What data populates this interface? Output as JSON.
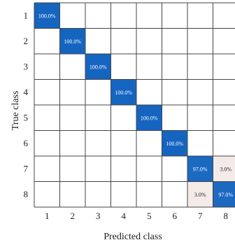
{
  "chart_data": {
    "type": "heatmap",
    "xlabel": "Predicted class",
    "ylabel": "True class",
    "x_categories": [
      "1",
      "2",
      "3",
      "4",
      "5",
      "6",
      "7",
      "8"
    ],
    "y_categories": [
      "1",
      "2",
      "3",
      "4",
      "5",
      "6",
      "7",
      "8"
    ],
    "unit": "%",
    "cells": [
      {
        "true": "1",
        "predicted": "1",
        "value": 100.0,
        "label": "100.0%"
      },
      {
        "true": "2",
        "predicted": "2",
        "value": 100.0,
        "label": "100.0%"
      },
      {
        "true": "3",
        "predicted": "3",
        "value": 100.0,
        "label": "100.0%"
      },
      {
        "true": "4",
        "predicted": "4",
        "value": 100.0,
        "label": "100.0%"
      },
      {
        "true": "5",
        "predicted": "5",
        "value": 100.0,
        "label": "100.0%"
      },
      {
        "true": "6",
        "predicted": "6",
        "value": 100.0,
        "label": "100.0%"
      },
      {
        "true": "7",
        "predicted": "7",
        "value": 97.0,
        "label": "97.0%"
      },
      {
        "true": "7",
        "predicted": "8",
        "value": 3.0,
        "label": "3.0%"
      },
      {
        "true": "8",
        "predicted": "7",
        "value": 3.0,
        "label": "3.0%"
      },
      {
        "true": "8",
        "predicted": "8",
        "value": 97.0,
        "label": "97.0%"
      }
    ],
    "colors": {
      "high": "#1565c0",
      "low": "#fbeee8",
      "grid": "#444444",
      "text_on_dark": "#ffffff",
      "text_on_light": "#222222"
    }
  }
}
